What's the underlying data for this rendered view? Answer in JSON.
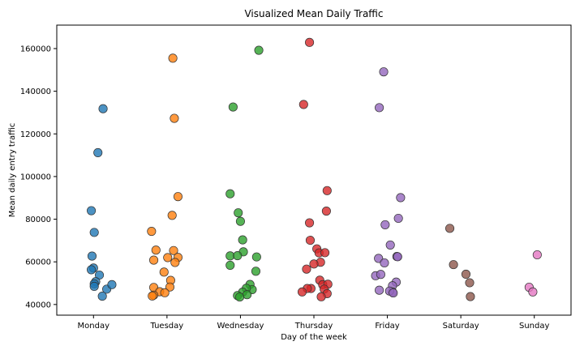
{
  "chart_data": {
    "type": "scatter",
    "title": "Visualized Mean Daily Traffic",
    "xlabel": "Day of the week",
    "ylabel": "Mean daily entry traffic",
    "categories": [
      "Monday",
      "Tuesday",
      "Wednesday",
      "Thursday",
      "Friday",
      "Saturday",
      "Sunday"
    ],
    "ylim": [
      35000,
      171000
    ],
    "yticks": [
      40000,
      60000,
      80000,
      100000,
      120000,
      140000,
      160000
    ],
    "ytick_labels": [
      "40000",
      "60000",
      "80000",
      "100000",
      "120000",
      "140000",
      "160000"
    ],
    "grid": false,
    "legend": "none",
    "colors": [
      "#1f77b4",
      "#ff7f0e",
      "#2ca02c",
      "#d62728",
      "#9467bd",
      "#8c564b",
      "#e377c2"
    ],
    "series": [
      {
        "category": "Monday",
        "points": [
          {
            "x": 0.13,
            "y": 131800
          },
          {
            "x": 0.06,
            "y": 111200
          },
          {
            "x": -0.03,
            "y": 84000
          },
          {
            "x": 0.01,
            "y": 73800
          },
          {
            "x": -0.02,
            "y": 62700
          },
          {
            "x": 0.08,
            "y": 53800
          },
          {
            "x": 0.0,
            "y": 57100
          },
          {
            "x": -0.03,
            "y": 56300
          },
          {
            "x": 0.03,
            "y": 50700
          },
          {
            "x": 0.01,
            "y": 49700
          },
          {
            "x": 0.01,
            "y": 48500
          },
          {
            "x": 0.18,
            "y": 47200
          },
          {
            "x": 0.25,
            "y": 49300
          },
          {
            "x": 0.12,
            "y": 43900
          }
        ]
      },
      {
        "category": "Tuesday",
        "points": [
          {
            "x": 0.08,
            "y": 155500
          },
          {
            "x": 0.1,
            "y": 127300
          },
          {
            "x": 0.15,
            "y": 90600
          },
          {
            "x": 0.07,
            "y": 81800
          },
          {
            "x": -0.21,
            "y": 74300
          },
          {
            "x": -0.15,
            "y": 65500
          },
          {
            "x": 0.09,
            "y": 65300
          },
          {
            "x": 0.01,
            "y": 62000
          },
          {
            "x": 0.15,
            "y": 62100
          },
          {
            "x": -0.18,
            "y": 60800
          },
          {
            "x": 0.11,
            "y": 59700
          },
          {
            "x": -0.04,
            "y": 55200
          },
          {
            "x": 0.05,
            "y": 51300
          },
          {
            "x": 0.04,
            "y": 48200
          },
          {
            "x": -0.18,
            "y": 48000
          },
          {
            "x": -0.1,
            "y": 46000
          },
          {
            "x": -0.03,
            "y": 45500
          },
          {
            "x": -0.18,
            "y": 44400
          },
          {
            "x": -0.2,
            "y": 44000
          }
        ]
      },
      {
        "category": "Wednesday",
        "points": [
          {
            "x": 0.25,
            "y": 159200
          },
          {
            "x": -0.1,
            "y": 132600
          },
          {
            "x": -0.14,
            "y": 91900
          },
          {
            "x": -0.03,
            "y": 83000
          },
          {
            "x": 0.0,
            "y": 79000
          },
          {
            "x": 0.03,
            "y": 70300
          },
          {
            "x": 0.04,
            "y": 64700
          },
          {
            "x": -0.14,
            "y": 62800
          },
          {
            "x": -0.04,
            "y": 62900
          },
          {
            "x": 0.22,
            "y": 62300
          },
          {
            "x": -0.14,
            "y": 58400
          },
          {
            "x": 0.21,
            "y": 55600
          },
          {
            "x": 0.13,
            "y": 49400
          },
          {
            "x": 0.16,
            "y": 47000
          },
          {
            "x": 0.08,
            "y": 47600
          },
          {
            "x": 0.03,
            "y": 45800
          },
          {
            "x": -0.04,
            "y": 44200
          },
          {
            "x": 0.09,
            "y": 44600
          },
          {
            "x": -0.01,
            "y": 43500
          }
        ]
      },
      {
        "category": "Thursday",
        "points": [
          {
            "x": -0.06,
            "y": 162900
          },
          {
            "x": -0.14,
            "y": 133800
          },
          {
            "x": 0.18,
            "y": 93400
          },
          {
            "x": 0.17,
            "y": 83800
          },
          {
            "x": -0.06,
            "y": 78300
          },
          {
            "x": -0.05,
            "y": 70100
          },
          {
            "x": 0.04,
            "y": 66100
          },
          {
            "x": 0.07,
            "y": 64200
          },
          {
            "x": 0.15,
            "y": 64300
          },
          {
            "x": 0.09,
            "y": 59800
          },
          {
            "x": 0.0,
            "y": 59000
          },
          {
            "x": -0.1,
            "y": 56600
          },
          {
            "x": 0.08,
            "y": 51400
          },
          {
            "x": 0.12,
            "y": 49300
          },
          {
            "x": 0.19,
            "y": 49500
          },
          {
            "x": -0.04,
            "y": 47500
          },
          {
            "x": -0.09,
            "y": 47500
          },
          {
            "x": 0.14,
            "y": 47200
          },
          {
            "x": -0.16,
            "y": 45900
          },
          {
            "x": 0.18,
            "y": 45100
          },
          {
            "x": 0.1,
            "y": 43600
          }
        ]
      },
      {
        "category": "Friday",
        "points": [
          {
            "x": -0.05,
            "y": 149100
          },
          {
            "x": -0.11,
            "y": 132300
          },
          {
            "x": 0.18,
            "y": 90100
          },
          {
            "x": 0.15,
            "y": 80400
          },
          {
            "x": -0.03,
            "y": 77400
          },
          {
            "x": 0.04,
            "y": 67900
          },
          {
            "x": 0.13,
            "y": 62500
          },
          {
            "x": 0.14,
            "y": 62400
          },
          {
            "x": -0.12,
            "y": 61600
          },
          {
            "x": -0.04,
            "y": 59500
          },
          {
            "x": -0.16,
            "y": 53500
          },
          {
            "x": -0.09,
            "y": 54100
          },
          {
            "x": 0.12,
            "y": 50500
          },
          {
            "x": 0.07,
            "y": 48800
          },
          {
            "x": -0.11,
            "y": 46700
          },
          {
            "x": 0.07,
            "y": 45900
          },
          {
            "x": 0.03,
            "y": 46300
          },
          {
            "x": 0.08,
            "y": 45400
          }
        ]
      },
      {
        "category": "Saturday",
        "points": [
          {
            "x": -0.15,
            "y": 75700
          },
          {
            "x": -0.1,
            "y": 58700
          },
          {
            "x": 0.07,
            "y": 54200
          },
          {
            "x": 0.12,
            "y": 50200
          },
          {
            "x": 0.13,
            "y": 43700
          }
        ]
      },
      {
        "category": "Sunday",
        "points": [
          {
            "x": 0.04,
            "y": 63300
          },
          {
            "x": -0.07,
            "y": 48100
          },
          {
            "x": -0.02,
            "y": 45900
          }
        ]
      }
    ]
  }
}
